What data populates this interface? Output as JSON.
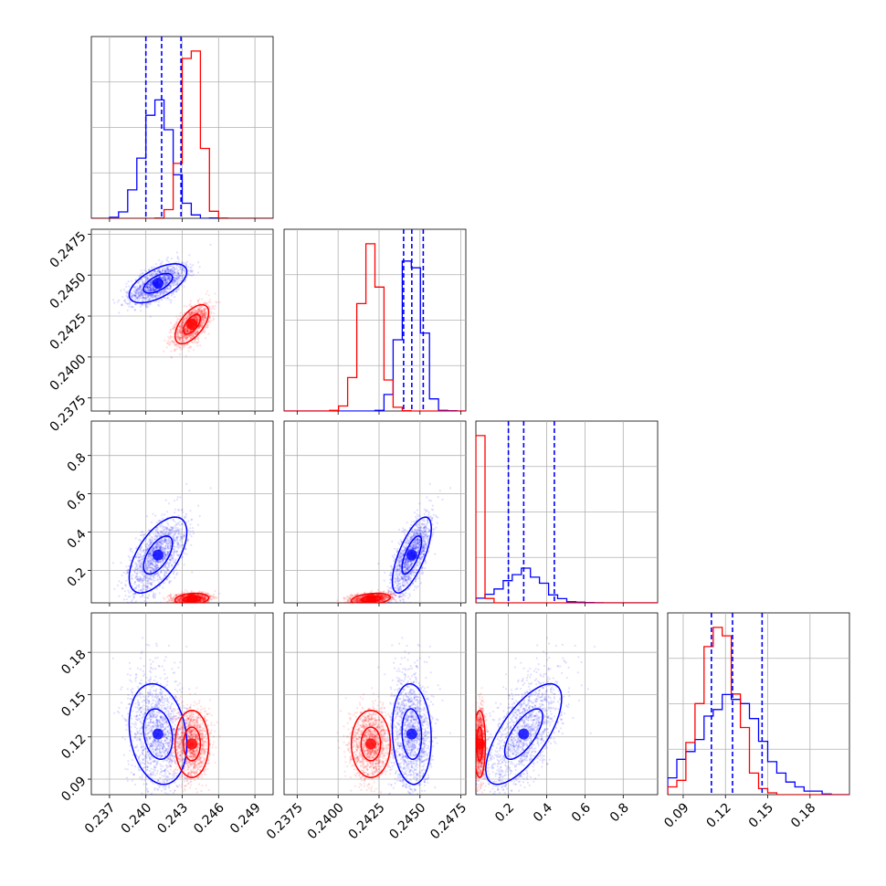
{
  "chart_data": {
    "type": "corner",
    "grid": true,
    "colors": {
      "series_a": "#0000ff",
      "series_b": "#ff0000",
      "grid": "#b0b0b0"
    },
    "params": [
      {
        "range": [
          0.2355,
          0.2505
        ],
        "ticks": [
          0.237,
          0.24,
          0.243,
          0.246,
          0.249
        ],
        "tick_labels": [
          "0.237",
          "0.240",
          "0.243",
          "0.246",
          "0.249"
        ]
      },
      {
        "range": [
          0.2367,
          0.2478
        ],
        "ticks": [
          0.2375,
          0.24,
          0.2425,
          0.245,
          0.2475
        ],
        "tick_labels": [
          "0.2375",
          "0.2400",
          "0.2425",
          "0.2450",
          "0.2475"
        ]
      },
      {
        "range": [
          0.03,
          0.98
        ],
        "ticks": [
          0.2,
          0.4,
          0.6,
          0.8
        ],
        "tick_labels": [
          "0.2",
          "0.4",
          "0.6",
          "0.8"
        ]
      },
      {
        "range": [
          0.079,
          0.208
        ],
        "ticks": [
          0.09,
          0.12,
          0.15,
          0.18
        ],
        "tick_labels": [
          "0.09",
          "0.12",
          "0.15",
          "0.18"
        ]
      }
    ],
    "series": [
      {
        "color": "#0000ff",
        "marginal_quantiles": [
          [
            0.24,
            0.2413,
            0.2429
          ],
          [
            0.244,
            0.2445,
            0.2452
          ],
          [
            0.2,
            0.28,
            0.44
          ],
          [
            0.11,
            0.125,
            0.146
          ]
        ],
        "means": [
          0.241,
          0.2445,
          0.28,
          0.122
        ],
        "stds": [
          0.0012,
          0.0006,
          0.1,
          0.018
        ],
        "corr": [
          [
            1,
            0.6,
            0.6,
            -0.2
          ],
          [
            0.6,
            1,
            0.7,
            -0.1
          ],
          [
            0.6,
            0.7,
            1,
            0.7
          ],
          [
            -0.2,
            -0.1,
            0.7,
            1
          ]
        ],
        "contour_levels": [
          0.39,
          0.86,
          1.0
        ]
      },
      {
        "color": "#ff0000",
        "marginal_quantiles": [],
        "means": [
          0.2438,
          0.242,
          0.05,
          0.115
        ],
        "stds": [
          0.0007,
          0.0006,
          0.015,
          0.012
        ],
        "corr": [
          [
            1,
            0.6,
            0.2,
            0.0
          ],
          [
            0.6,
            1,
            0.3,
            0.0
          ],
          [
            0.2,
            0.3,
            1,
            0.0
          ],
          [
            0.0,
            0.0,
            0.0,
            1
          ]
        ],
        "contour_levels": [
          0.39,
          0.86,
          1.0
        ]
      }
    ]
  }
}
